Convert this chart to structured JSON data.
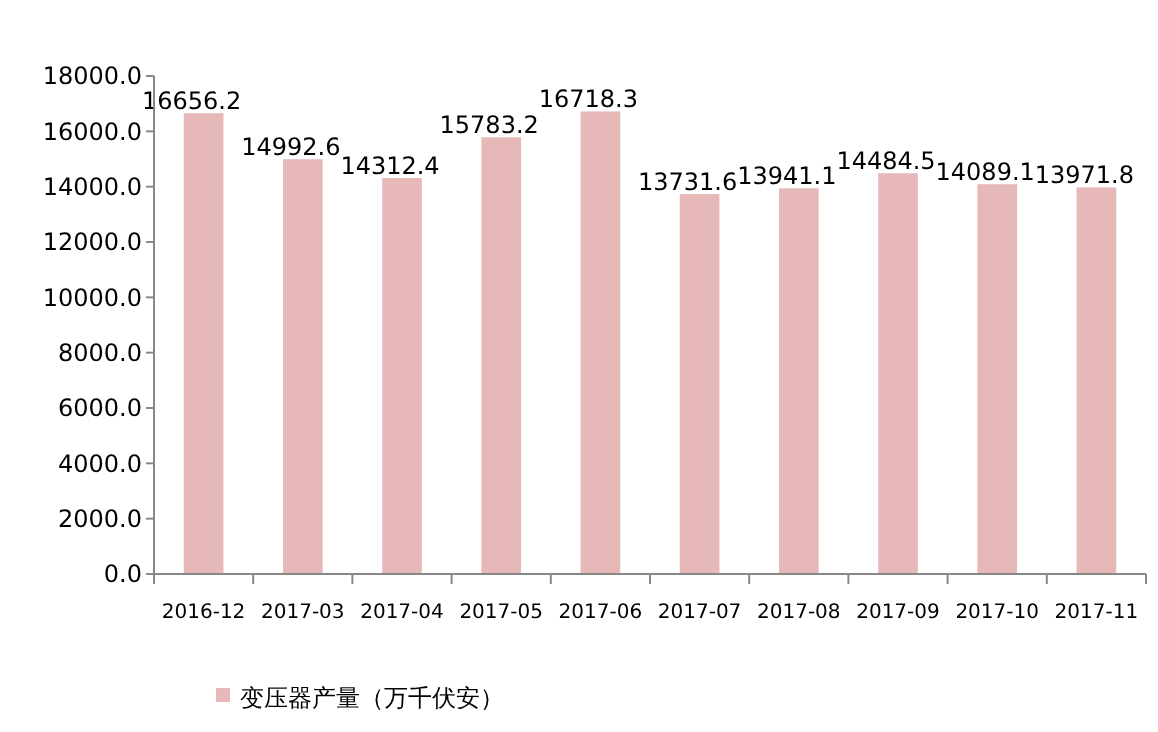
{
  "chart_data": {
    "type": "bar",
    "categories": [
      "2016-12",
      "2017-03",
      "2017-04",
      "2017-05",
      "2017-06",
      "2017-07",
      "2017-08",
      "2017-09",
      "2017-10",
      "2017-11"
    ],
    "series": [
      {
        "name": "变压器产量（万千伏安）",
        "color": "#e6b8b7",
        "values": [
          16656.2,
          14992.6,
          14312.4,
          15783.2,
          16718.3,
          13731.6,
          13941.1,
          14484.5,
          14089.1,
          13971.8
        ]
      }
    ],
    "ylim": [
      0,
      18000
    ],
    "yticks": [
      {
        "value": 0,
        "label": "0.0"
      },
      {
        "value": 2000,
        "label": "2000.0"
      },
      {
        "value": 4000,
        "label": "4000.0"
      },
      {
        "value": 6000,
        "label": "6000.0"
      },
      {
        "value": 8000,
        "label": "8000.0"
      },
      {
        "value": 10000,
        "label": "10000.0"
      },
      {
        "value": 12000,
        "label": "12000.0"
      },
      {
        "value": 14000,
        "label": "14000.0"
      },
      {
        "value": 16000,
        "label": "16000.0"
      },
      {
        "value": 18000,
        "label": "18000.0"
      }
    ],
    "data_labels": true,
    "legend": "bottom left",
    "grid": false
  }
}
